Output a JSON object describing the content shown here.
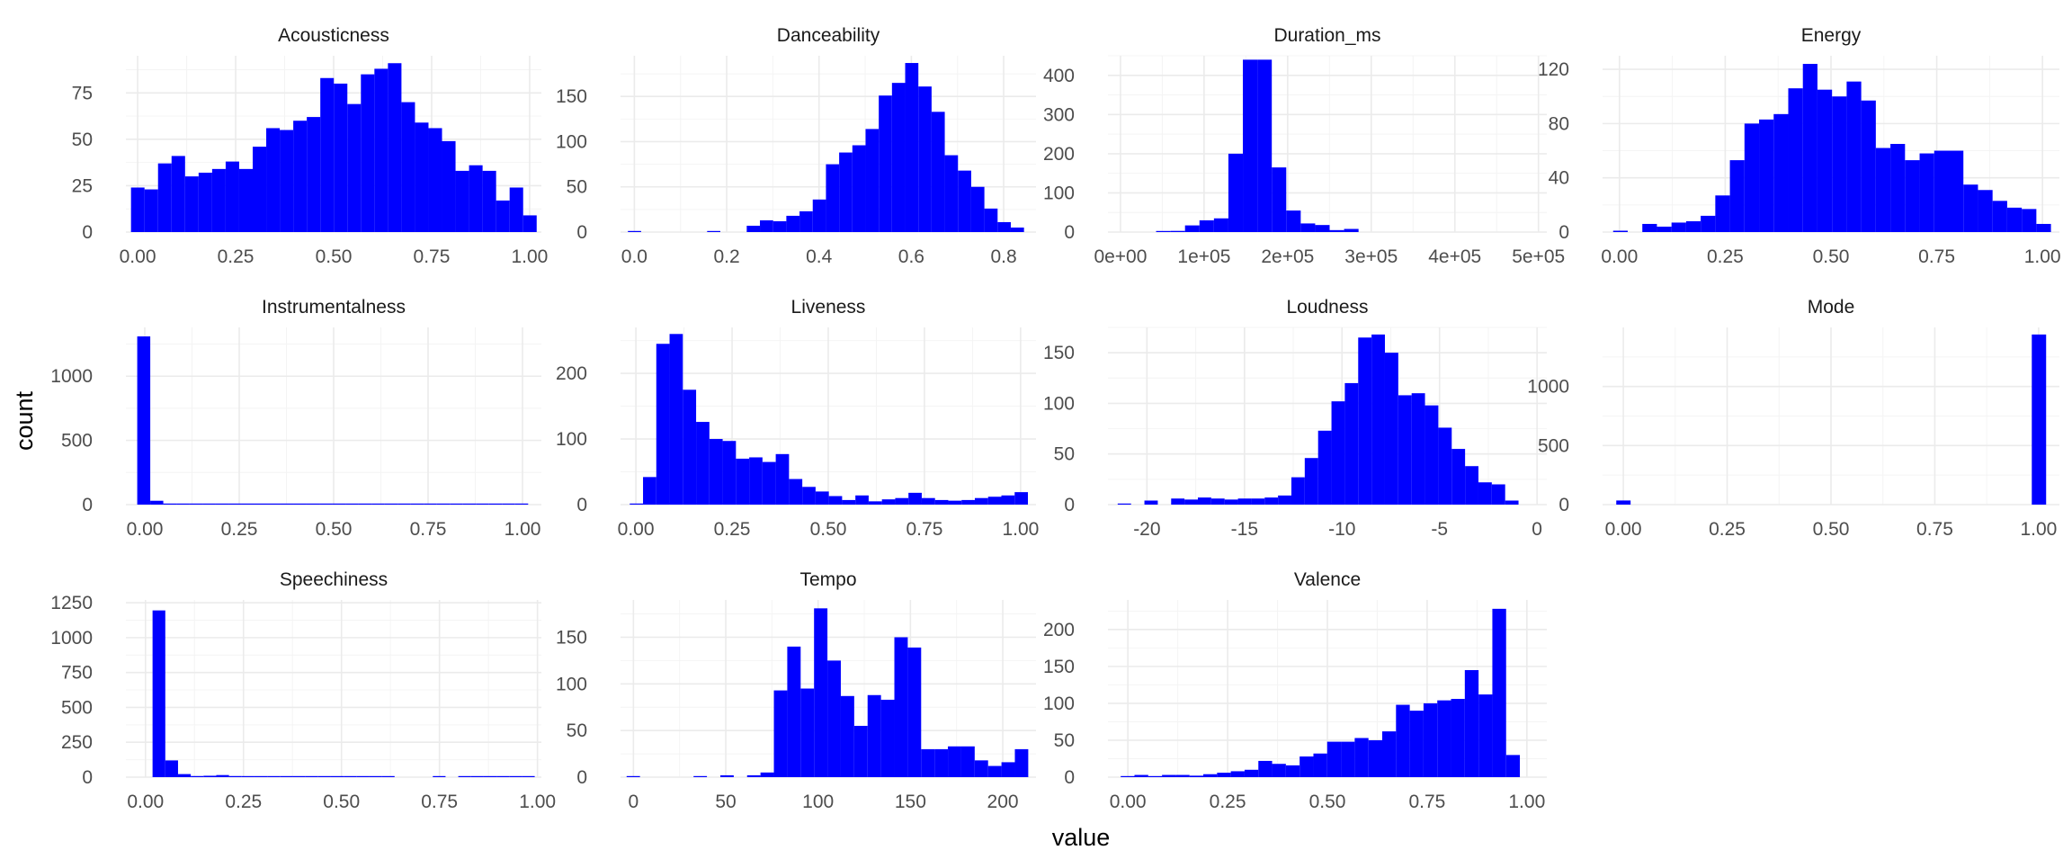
{
  "chart_data": {
    "type": "bar",
    "layout": "faceted histograms, 4 columns x 3 rows",
    "bar_color": "#0000ff",
    "background": "#ffffff",
    "grid": true,
    "xlabel": "value",
    "ylabel": "count",
    "panels": [
      {
        "title": "Acousticness",
        "xlim": [
          -0.03,
          1.03
        ],
        "ylim": [
          0,
          95
        ],
        "xticks": [
          0,
          0.25,
          0.5,
          0.75,
          1
        ],
        "xtick_labels": [
          "0.00",
          "0.25",
          "0.50",
          "0.75",
          "1.00"
        ],
        "yticks": [
          0,
          25,
          50,
          75
        ],
        "ytick_labels": [
          "0",
          "25",
          "50",
          "75"
        ],
        "bins": {
          "start": -0.017,
          "width": 0.0345,
          "counts": [
            24,
            23,
            37,
            41,
            30,
            32,
            34,
            38,
            34,
            46,
            56,
            55,
            60,
            62,
            83,
            80,
            69,
            85,
            88,
            91,
            70,
            59,
            56,
            49,
            33,
            36,
            33,
            17,
            24,
            9
          ]
        }
      },
      {
        "title": "Danceability",
        "xlim": [
          -0.03,
          0.87
        ],
        "ylim": [
          0,
          195
        ],
        "xticks": [
          0,
          0.2,
          0.4,
          0.6,
          0.8
        ],
        "xtick_labels": [
          "0.0",
          "0.2",
          "0.4",
          "0.6",
          "0.8"
        ],
        "yticks": [
          0,
          50,
          100,
          150
        ],
        "ytick_labels": [
          "0",
          "50",
          "100",
          "150"
        ],
        "bins": {
          "start": -0.014,
          "width": 0.0286,
          "counts": [
            1,
            0,
            0,
            0,
            0,
            0,
            1,
            0,
            0,
            7,
            13,
            12,
            18,
            23,
            36,
            75,
            88,
            96,
            114,
            151,
            165,
            187,
            161,
            133,
            85,
            68,
            50,
            26,
            11,
            5
          ]
        }
      },
      {
        "title": "Duration_ms",
        "xlim": [
          -15000,
          510000
        ],
        "ylim": [
          0,
          450
        ],
        "xticks": [
          0,
          100000,
          200000,
          300000,
          400000,
          500000
        ],
        "xtick_labels": [
          "0e+00",
          "1e+05",
          "2e+05",
          "3e+05",
          "4e+05",
          "5e+05"
        ],
        "yticks": [
          0,
          100,
          200,
          300,
          400
        ],
        "ytick_labels": [
          "0",
          "100",
          "200",
          "300",
          "400"
        ],
        "bins": {
          "start": 8000,
          "width": 17300,
          "counts": [
            0,
            0,
            1,
            3,
            17,
            30,
            35,
            200,
            440,
            440,
            165,
            55,
            22,
            18,
            5,
            8,
            0,
            0,
            0,
            0,
            0,
            0,
            0,
            0,
            0,
            0,
            0,
            0,
            0,
            0
          ]
        }
      },
      {
        "title": "Energy",
        "xlim": [
          -0.04,
          1.04
        ],
        "ylim": [
          0,
          130
        ],
        "xticks": [
          0,
          0.25,
          0.5,
          0.75,
          1
        ],
        "xtick_labels": [
          "0.00",
          "0.25",
          "0.50",
          "0.75",
          "1.00"
        ],
        "yticks": [
          0,
          40,
          80,
          120
        ],
        "ytick_labels": [
          "0",
          "40",
          "80",
          "120"
        ],
        "bins": {
          "start": -0.015,
          "width": 0.0345,
          "counts": [
            1,
            0,
            6,
            4,
            7,
            8,
            12,
            27,
            53,
            80,
            83,
            87,
            106,
            124,
            105,
            100,
            111,
            97,
            62,
            65,
            53,
            58,
            60,
            60,
            35,
            31,
            23,
            18,
            17,
            6
          ]
        }
      },
      {
        "title": "Instrumentalness",
        "xlim": [
          -0.05,
          1.05
        ],
        "ylim": [
          0,
          1380
        ],
        "xticks": [
          0,
          0.25,
          0.5,
          0.75,
          1
        ],
        "xtick_labels": [
          "0.00",
          "0.25",
          "0.50",
          "0.75",
          "1.00"
        ],
        "yticks": [
          0,
          500,
          1000
        ],
        "ytick_labels": [
          "0",
          "500",
          "1000"
        ],
        "bins": {
          "start": -0.02,
          "width": 0.0345,
          "counts": [
            1310,
            30,
            5,
            6,
            3,
            4,
            3,
            5,
            4,
            3,
            2,
            2,
            2,
            1,
            1,
            4,
            2,
            3,
            3,
            4,
            3,
            4,
            3,
            5,
            4,
            8,
            6,
            7,
            4,
            2
          ]
        }
      },
      {
        "title": "Liveness",
        "xlim": [
          -0.04,
          1.04
        ],
        "ylim": [
          0,
          270
        ],
        "xticks": [
          0,
          0.25,
          0.5,
          0.75,
          1
        ],
        "xtick_labels": [
          "0.00",
          "0.25",
          "0.50",
          "0.75",
          "1.00"
        ],
        "yticks": [
          0,
          100,
          200
        ],
        "ytick_labels": [
          "0",
          "100",
          "200"
        ],
        "bins": {
          "start": -0.016,
          "width": 0.0345,
          "counts": [
            1,
            42,
            245,
            260,
            175,
            126,
            100,
            97,
            70,
            72,
            65,
            77,
            39,
            27,
            20,
            13,
            7,
            14,
            5,
            8,
            10,
            18,
            10,
            7,
            6,
            7,
            10,
            12,
            14,
            19
          ]
        }
      },
      {
        "title": "Loudness",
        "xlim": [
          -22,
          0.5
        ],
        "ylim": [
          0,
          175
        ],
        "xticks": [
          -20,
          -15,
          -10,
          -5,
          0
        ],
        "xtick_labels": [
          "-20",
          "-15",
          "-10",
          "-5",
          "0"
        ],
        "yticks": [
          0,
          50,
          100,
          150
        ],
        "ytick_labels": [
          "0",
          "50",
          "100",
          "150"
        ],
        "bins": {
          "start": -21.5,
          "width": 0.685,
          "counts": [
            1,
            0,
            4,
            0,
            6,
            5,
            7,
            6,
            5,
            6,
            6,
            7,
            9,
            27,
            46,
            73,
            102,
            120,
            165,
            168,
            150,
            108,
            110,
            98,
            76,
            55,
            38,
            22,
            20,
            4
          ]
        }
      },
      {
        "title": "Mode",
        "xlim": [
          -0.05,
          1.05
        ],
        "ylim": [
          0,
          1500
        ],
        "xticks": [
          0,
          0.25,
          0.5,
          0.75,
          1
        ],
        "xtick_labels": [
          "0.00",
          "0.25",
          "0.50",
          "0.75",
          "1.00"
        ],
        "yticks": [
          0,
          500,
          1000
        ],
        "ytick_labels": [
          "0",
          "500",
          "1000"
        ],
        "bins": {
          "start": -0.017,
          "width": 0.0345,
          "counts": [
            35,
            0,
            0,
            0,
            0,
            0,
            0,
            0,
            0,
            0,
            0,
            0,
            0,
            0,
            0,
            0,
            0,
            0,
            0,
            0,
            0,
            0,
            0,
            0,
            0,
            0,
            0,
            0,
            0,
            1440
          ]
        }
      },
      {
        "title": "Speechiness",
        "xlim": [
          -0.05,
          1.01
        ],
        "ylim": [
          0,
          1270
        ],
        "xticks": [
          0,
          0.25,
          0.5,
          0.75,
          1
        ],
        "xtick_labels": [
          "0.00",
          "0.25",
          "0.50",
          "0.75",
          "1.00"
        ],
        "yticks": [
          0,
          250,
          500,
          750,
          1000,
          1250
        ],
        "ytick_labels": [
          "0",
          "250",
          "500",
          "750",
          "1000",
          "1250"
        ],
        "bins": {
          "start": 0.018,
          "width": 0.0325,
          "counts": [
            1195,
            120,
            22,
            8,
            10,
            15,
            8,
            3,
            2,
            6,
            3,
            4,
            2,
            1,
            1,
            2,
            1,
            1,
            1,
            0,
            0,
            0,
            1,
            0,
            1,
            2,
            3,
            3,
            2,
            1
          ]
        }
      },
      {
        "title": "Tempo",
        "xlim": [
          -7,
          218
        ],
        "ylim": [
          0,
          190
        ],
        "xticks": [
          0,
          50,
          100,
          150,
          200
        ],
        "xtick_labels": [
          "0",
          "50",
          "100",
          "150",
          "200"
        ],
        "yticks": [
          0,
          50,
          100,
          150
        ],
        "ytick_labels": [
          "0",
          "50",
          "100",
          "150"
        ],
        "bins": {
          "start": -3.7,
          "width": 7.25,
          "counts": [
            1,
            0,
            0,
            0,
            0,
            1,
            0,
            2,
            0,
            2,
            5,
            93,
            140,
            95,
            181,
            125,
            87,
            55,
            88,
            83,
            150,
            139,
            30,
            30,
            33,
            33,
            18,
            12,
            16,
            30
          ]
        }
      },
      {
        "title": "Valence",
        "xlim": [
          -0.05,
          1.05
        ],
        "ylim": [
          0,
          240
        ],
        "xticks": [
          0,
          0.25,
          0.5,
          0.75,
          1
        ],
        "xtick_labels": [
          "0.00",
          "0.25",
          "0.50",
          "0.75",
          "1.00"
        ],
        "yticks": [
          0,
          50,
          100,
          150,
          200
        ],
        "ytick_labels": [
          "0",
          "50",
          "100",
          "150",
          "200"
        ],
        "bins": {
          "start": -0.018,
          "width": 0.0345,
          "counts": [
            1,
            3,
            1,
            3,
            3,
            2,
            4,
            6,
            8,
            10,
            22,
            18,
            16,
            28,
            32,
            48,
            48,
            53,
            50,
            62,
            98,
            90,
            100,
            104,
            106,
            145,
            112,
            228,
            30,
            0
          ]
        }
      }
    ]
  }
}
